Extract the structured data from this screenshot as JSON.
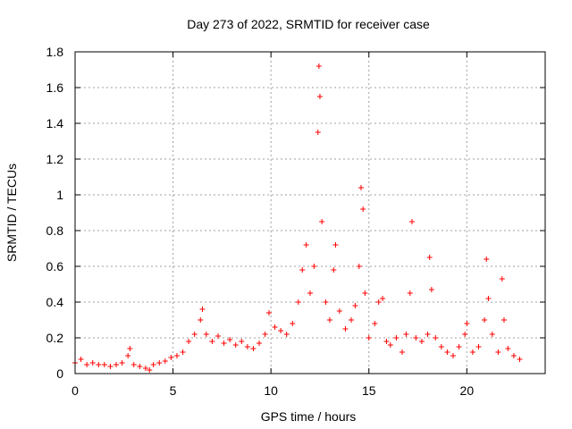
{
  "chart_data": {
    "type": "scatter",
    "title": "Day 273 of 2022, SRMTID for receiver case",
    "xlabel": "GPS time / hours",
    "ylabel": "SRMTID / TECUs",
    "xlim": [
      0,
      24
    ],
    "ylim": [
      0,
      1.8
    ],
    "xticks": [
      0,
      5,
      10,
      15,
      20
    ],
    "yticks": [
      0,
      0.2,
      0.4,
      0.6,
      0.8,
      1,
      1.2,
      1.4,
      1.6,
      1.8
    ],
    "xtick_labels": [
      "0",
      "5",
      "10",
      "15",
      "20"
    ],
    "ytick_labels": [
      "0",
      "0.2",
      "0.4",
      "0.6",
      "0.8",
      "1",
      "1.2",
      "1.4",
      "1.6",
      "1.8"
    ],
    "grid": true,
    "marker": "+",
    "series_color": "#ff0000",
    "series": [
      {
        "name": "SRMTID",
        "x": [
          0.0,
          0.3,
          0.6,
          0.9,
          1.2,
          1.5,
          1.8,
          2.1,
          2.4,
          2.7,
          2.8,
          3.0,
          3.3,
          3.6,
          3.8,
          4.0,
          4.3,
          4.6,
          4.9,
          5.2,
          5.5,
          5.8,
          6.1,
          6.4,
          6.5,
          6.7,
          7.0,
          7.3,
          7.6,
          7.9,
          8.2,
          8.5,
          8.8,
          9.1,
          9.4,
          9.7,
          9.9,
          10.2,
          10.5,
          10.8,
          11.1,
          11.4,
          11.6,
          11.8,
          12.0,
          12.2,
          12.4,
          12.45,
          12.5,
          12.6,
          12.8,
          13.0,
          13.2,
          13.3,
          13.5,
          13.8,
          14.1,
          14.3,
          14.5,
          14.6,
          14.7,
          14.8,
          15.0,
          15.3,
          15.5,
          15.7,
          15.9,
          16.1,
          16.4,
          16.7,
          16.9,
          17.1,
          17.2,
          17.4,
          17.7,
          18.0,
          18.1,
          18.2,
          18.4,
          18.7,
          19.0,
          19.3,
          19.6,
          19.9,
          20.0,
          20.3,
          20.6,
          20.9,
          21.0,
          21.1,
          21.3,
          21.6,
          21.8,
          21.9,
          22.1,
          22.4,
          22.7
        ],
        "y": [
          0.06,
          0.08,
          0.05,
          0.06,
          0.05,
          0.05,
          0.04,
          0.05,
          0.06,
          0.1,
          0.14,
          0.05,
          0.04,
          0.03,
          0.02,
          0.05,
          0.06,
          0.07,
          0.09,
          0.1,
          0.12,
          0.18,
          0.22,
          0.3,
          0.36,
          0.22,
          0.18,
          0.21,
          0.17,
          0.19,
          0.16,
          0.18,
          0.15,
          0.14,
          0.17,
          0.22,
          0.34,
          0.26,
          0.24,
          0.22,
          0.28,
          0.4,
          0.58,
          0.72,
          0.45,
          0.6,
          1.35,
          1.72,
          1.55,
          0.85,
          0.4,
          0.3,
          0.58,
          0.72,
          0.35,
          0.25,
          0.3,
          0.38,
          0.6,
          1.04,
          0.92,
          0.45,
          0.2,
          0.28,
          0.4,
          0.42,
          0.18,
          0.16,
          0.2,
          0.12,
          0.22,
          0.45,
          0.85,
          0.2,
          0.18,
          0.22,
          0.65,
          0.47,
          0.2,
          0.15,
          0.12,
          0.1,
          0.15,
          0.22,
          0.28,
          0.12,
          0.15,
          0.3,
          0.64,
          0.42,
          0.22,
          0.12,
          0.53,
          0.3,
          0.14,
          0.1,
          0.08
        ]
      }
    ]
  }
}
